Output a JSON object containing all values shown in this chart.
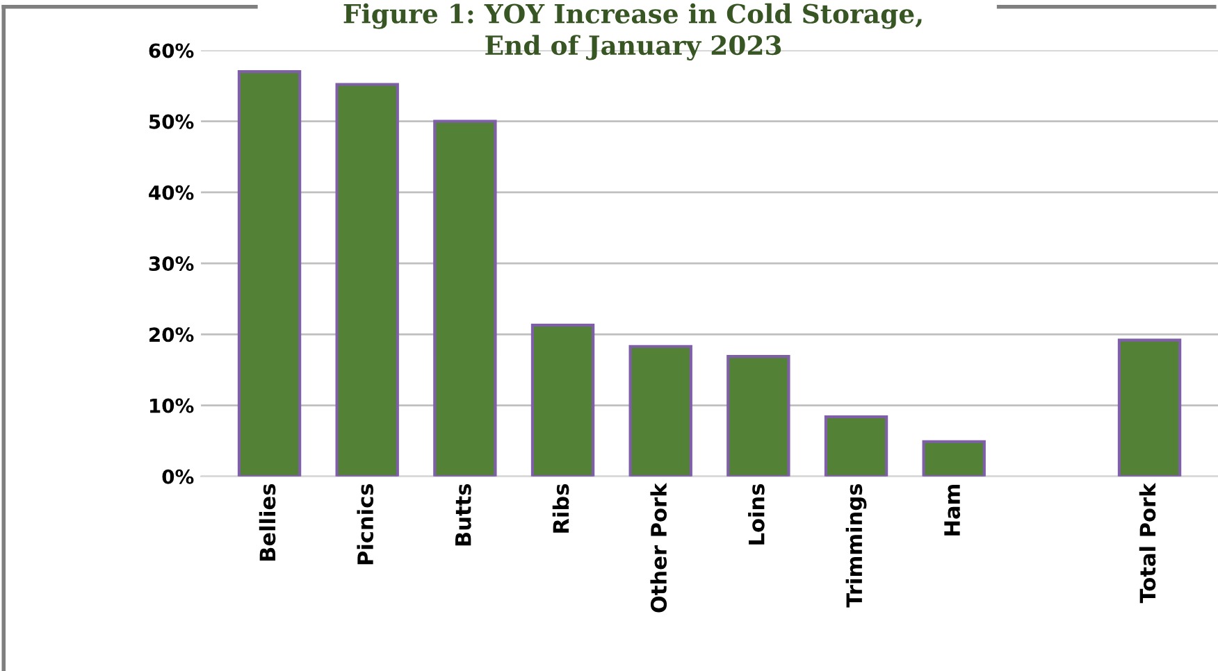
{
  "chart_data": {
    "type": "bar",
    "title": "Figure 1: YOY Increase in Cold Storage,\nEnd of January 2023",
    "categories": [
      "Bellies",
      "Picnics",
      "Butts",
      "Ribs",
      "Other Pork",
      "Loins",
      "Trimmings",
      "Ham",
      null,
      "Total Pork"
    ],
    "values": [
      57,
      55.2,
      50,
      21.3,
      18.3,
      16.9,
      8.4,
      4.9,
      null,
      19.2
    ],
    "color": "#538135",
    "ylim": [
      0,
      60
    ],
    "yticks": [
      {
        "value": 0,
        "label": "0%"
      },
      {
        "value": 10,
        "label": "10%"
      },
      {
        "value": 20,
        "label": "20%"
      },
      {
        "value": 30,
        "label": "30%"
      },
      {
        "value": 40,
        "label": "40%"
      },
      {
        "value": 50,
        "label": "50%"
      },
      {
        "value": 60,
        "label": "60%"
      }
    ],
    "grid": "y"
  }
}
